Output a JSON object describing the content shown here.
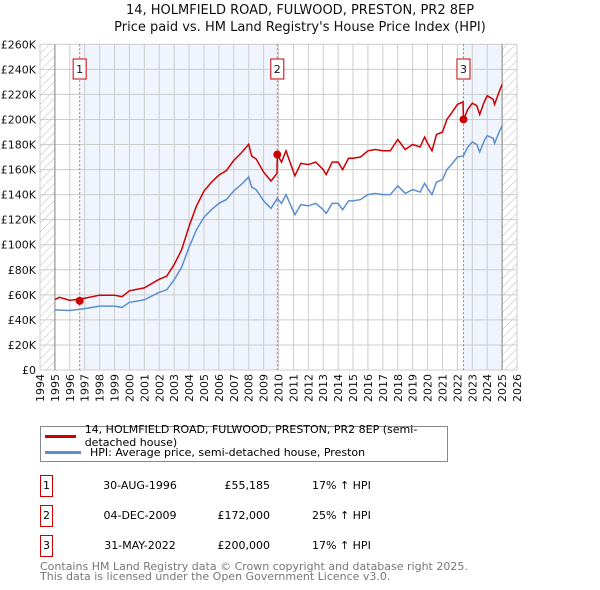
{
  "chart_data": {
    "type": "line",
    "title": "14, HOLMFIELD ROAD, FULWOOD, PRESTON, PR2 8EP",
    "subtitle": "Price paid vs. HM Land Registry's House Price Index (HPI)",
    "xlim": [
      1994,
      2026
    ],
    "ylim": [
      0,
      260000
    ],
    "x_ticks": [
      "1994",
      "1995",
      "1996",
      "1997",
      "1998",
      "1999",
      "2000",
      "2001",
      "2002",
      "2003",
      "2004",
      "2005",
      "2006",
      "2007",
      "2008",
      "2009",
      "2010",
      "2011",
      "2012",
      "2013",
      "2014",
      "2015",
      "2016",
      "2017",
      "2018",
      "2019",
      "2020",
      "2021",
      "2022",
      "2023",
      "2024",
      "2025",
      "2026"
    ],
    "y_ticks": [
      {
        "v": 0,
        "label": "£0"
      },
      {
        "v": 20000,
        "label": "£20K"
      },
      {
        "v": 40000,
        "label": "£40K"
      },
      {
        "v": 60000,
        "label": "£60K"
      },
      {
        "v": 80000,
        "label": "£80K"
      },
      {
        "v": 100000,
        "label": "£100K"
      },
      {
        "v": 120000,
        "label": "£120K"
      },
      {
        "v": 140000,
        "label": "£140K"
      },
      {
        "v": 160000,
        "label": "£160K"
      },
      {
        "v": 180000,
        "label": "£180K"
      },
      {
        "v": 200000,
        "label": "£200K"
      },
      {
        "v": 220000,
        "label": "£220K"
      },
      {
        "v": 240000,
        "label": "£240K"
      },
      {
        "v": 260000,
        "label": "£260K"
      }
    ],
    "grid": true,
    "data_range": [
      1995,
      2025
    ],
    "series": [
      {
        "name": "14, HOLMFIELD ROAD, FULWOOD, PRESTON, PR2 8EP (semi-detached house)",
        "color": "#cc0000",
        "x": [
          1995,
          1995.3,
          1996,
          1997,
          1998,
          1999,
          1999.5,
          2000,
          2001,
          2002,
          2002.5,
          2003,
          2003.5,
          2004,
          2004.5,
          2005,
          2005.5,
          2006,
          2006.5,
          2007,
          2007.5,
          2008,
          2008.2,
          2008.5,
          2009,
          2009.5,
          2009.9,
          2009.92,
          2010.2,
          2010.5,
          2010.8,
          2011.1,
          2011.5,
          2012,
          2012.5,
          2013,
          2013.2,
          2013.6,
          2014,
          2014.3,
          2014.7,
          2015,
          2015.5,
          2016,
          2016.5,
          2017,
          2017.5,
          2018,
          2018.5,
          2019,
          2019.5,
          2019.8,
          2020,
          2020.3,
          2020.6,
          2021,
          2021.3,
          2021.6,
          2022,
          2022.38,
          2022.41,
          2022.7,
          2023,
          2023.3,
          2023.5,
          2023.8,
          2024,
          2024.4,
          2024.5,
          2024.8,
          2025
        ],
        "y": [
          56200,
          58000,
          55600,
          57300,
          59700,
          59700,
          58500,
          63200,
          65500,
          72500,
          74900,
          84200,
          95900,
          114700,
          131000,
          142700,
          149800,
          155600,
          159100,
          167300,
          173200,
          180200,
          170800,
          168500,
          158000,
          150900,
          157000,
          172000,
          166000,
          175000,
          165000,
          155000,
          165000,
          164000,
          166000,
          160000,
          156000,
          166000,
          166000,
          160000,
          169000,
          169000,
          170000,
          175000,
          176000,
          175000,
          175000,
          184000,
          176000,
          180000,
          178000,
          186000,
          181000,
          175000,
          188000,
          190000,
          200000,
          205000,
          212000,
          214000,
          200000,
          208000,
          213000,
          211000,
          204000,
          214000,
          219000,
          216000,
          212000,
          222000,
          228000
        ]
      },
      {
        "name": "HPI: Average price, semi-detached house, Preston",
        "color": "#5b8fd0",
        "x": [
          1995,
          1996,
          1997,
          1998,
          1999,
          1999.5,
          2000,
          2001,
          2002,
          2002.5,
          2003,
          2003.5,
          2004,
          2004.5,
          2005,
          2005.5,
          2006,
          2006.5,
          2007,
          2007.5,
          2008,
          2008.2,
          2008.5,
          2009,
          2009.5,
          2009.92,
          2010.2,
          2010.5,
          2010.8,
          2011.1,
          2011.5,
          2012,
          2012.5,
          2013,
          2013.2,
          2013.6,
          2014,
          2014.3,
          2014.7,
          2015,
          2015.5,
          2016,
          2016.5,
          2017,
          2017.5,
          2018,
          2018.5,
          2019,
          2019.5,
          2019.8,
          2020,
          2020.3,
          2020.6,
          2021,
          2021.3,
          2021.6,
          2022,
          2022.4,
          2022.7,
          2023,
          2023.3,
          2023.5,
          2023.8,
          2024,
          2024.4,
          2024.5,
          2024.8,
          2025
        ],
        "y": [
          48000,
          47500,
          49000,
          51000,
          51000,
          50000,
          54000,
          56000,
          62000,
          64000,
          72000,
          82000,
          98000,
          112000,
          122000,
          128000,
          133000,
          136000,
          143000,
          148000,
          154000,
          146000,
          144000,
          135000,
          129000,
          137000,
          133000,
          140000,
          132000,
          124000,
          132000,
          131000,
          133000,
          128000,
          125000,
          133000,
          133000,
          128000,
          135000,
          135000,
          136000,
          140000,
          141000,
          140000,
          140000,
          147000,
          141000,
          144000,
          142000,
          149000,
          145000,
          140000,
          150000,
          152000,
          160000,
          164000,
          170000,
          171000,
          178000,
          182000,
          180000,
          174000,
          183000,
          187000,
          185000,
          181000,
          190000,
          195000
        ]
      }
    ],
    "sales": [
      {
        "label": "1",
        "x": 1996.66,
        "y": 55185,
        "date": "30-AUG-1996",
        "price": "£55,185",
        "hpi": "17% ↑ HPI"
      },
      {
        "label": "2",
        "x": 2009.92,
        "y": 172000,
        "date": "04-DEC-2009",
        "price": "£172,000",
        "hpi": "25% ↑ HPI"
      },
      {
        "label": "3",
        "x": 2022.41,
        "y": 200000,
        "date": "31-MAY-2022",
        "price": "£200,000",
        "hpi": "17% ↑ HPI"
      }
    ]
  },
  "legend": {
    "red": "14, HOLMFIELD ROAD, FULWOOD, PRESTON, PR2 8EP (semi-detached house)",
    "blue": "HPI: Average price, semi-detached house, Preston"
  },
  "footer": {
    "line1": "Contains HM Land Registry data © Crown copyright and database right 2025.",
    "line2": "This data is licensed under the Open Government Licence v3.0."
  }
}
